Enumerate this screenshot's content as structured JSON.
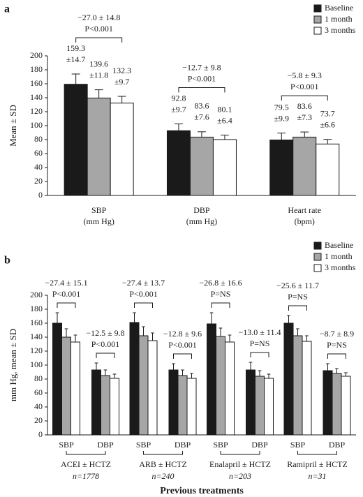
{
  "chart_data": [
    {
      "type": "bar",
      "panel_label": "a",
      "ylabel": "Mean ± SD",
      "categories": [
        "SBP",
        "DBP",
        "Heart rate"
      ],
      "category_units": [
        "(mm Hg)",
        "(mm Hg)",
        "(bpm)"
      ],
      "series": [
        {
          "name": "Baseline",
          "color": "#1a1a1a",
          "values": [
            159.3,
            92.8,
            79.5
          ],
          "errors": [
            14.7,
            9.7,
            9.9
          ],
          "error_labels": [
            "±14.7",
            "±9.7",
            "±9.9"
          ]
        },
        {
          "name": "1 month",
          "color": "#a6a6a6",
          "values": [
            139.6,
            83.6,
            83.6
          ],
          "errors": [
            11.8,
            7.6,
            7.3
          ],
          "error_labels": [
            "±11.8",
            "±7.6",
            "±7.3"
          ]
        },
        {
          "name": "3 months",
          "color": "#ffffff",
          "values": [
            132.3,
            80.1,
            73.7
          ],
          "errors": [
            9.7,
            6.4,
            6.6
          ],
          "error_labels": [
            "±9.7",
            "±6.4",
            "±6.6"
          ]
        }
      ],
      "annotations": [
        {
          "change": "−27.0 ± 14.8",
          "p": "P<0.001"
        },
        {
          "change": "−12.7 ± 9.8",
          "p": "P<0.001"
        },
        {
          "change": "−5.8 ± 9.3",
          "p": "P<0.001"
        }
      ],
      "ylim": [
        0,
        200
      ],
      "yticks": [
        0,
        20,
        40,
        60,
        80,
        100,
        120,
        140,
        160,
        180,
        200
      ],
      "legend": "upper right"
    },
    {
      "type": "bar",
      "panel_label": "b",
      "ylabel": "mm Hg, mean ± SD",
      "xlabel": "Previous treatments",
      "categories": [
        "SBP",
        "DBP",
        "SBP",
        "DBP",
        "SBP",
        "DBP",
        "SBP",
        "DBP"
      ],
      "groups": [
        {
          "name": "ACEI ± HCTZ",
          "n": "n=1778"
        },
        {
          "name": "ARB ± HCTZ",
          "n": "n=240"
        },
        {
          "name": "Enalapril ± HCTZ",
          "n": "n=203"
        },
        {
          "name": "Ramipril ± HCTZ",
          "n": "n=31"
        }
      ],
      "series": [
        {
          "name": "Baseline",
          "color": "#1a1a1a",
          "values": [
            160,
            93,
            161,
            93,
            159,
            93,
            160,
            92
          ],
          "errors": [
            15,
            10,
            14,
            9,
            16,
            11,
            11,
            10
          ]
        },
        {
          "name": "1 month",
          "color": "#a6a6a6",
          "values": [
            140,
            85,
            142,
            85,
            141,
            84,
            142,
            88
          ],
          "errors": [
            12,
            8,
            13,
            8,
            12,
            8,
            10,
            7
          ]
        },
        {
          "name": "3 months",
          "color": "#ffffff",
          "values": [
            133,
            81,
            135,
            81,
            133,
            81,
            134,
            84
          ],
          "errors": [
            10,
            6,
            11,
            7,
            10,
            6,
            8,
            5
          ]
        }
      ],
      "annotations": [
        {
          "change": "−27.4 ± 15.1",
          "p": "P<0.001"
        },
        {
          "change": "−12.5 ± 9.8",
          "p": "P<0.001"
        },
        {
          "change": "−27.4 ± 13.7",
          "p": "P<0.001"
        },
        {
          "change": "−12.8 ± 9.6",
          "p": "P<0.001"
        },
        {
          "change": "−26.8 ± 16.6",
          "p": "P=NS"
        },
        {
          "change": "−13.0 ± 11.4",
          "p": "P=NS"
        },
        {
          "change": "−25.6 ± 11.7",
          "p": "P=NS"
        },
        {
          "change": "−8.7 ± 8.9",
          "p": "P=NS"
        }
      ],
      "ylim": [
        0,
        200
      ],
      "yticks": [
        0,
        20,
        40,
        60,
        80,
        100,
        120,
        140,
        160,
        180,
        200
      ],
      "legend": "upper right"
    }
  ]
}
